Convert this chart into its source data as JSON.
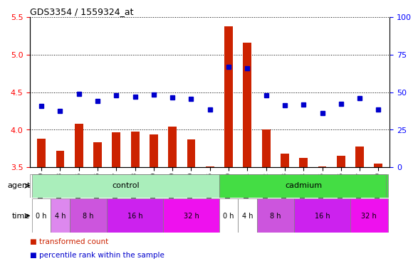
{
  "title": "GDS3354 / 1559324_at",
  "samples": [
    "GSM251630",
    "GSM251633",
    "GSM251635",
    "GSM251636",
    "GSM251637",
    "GSM251638",
    "GSM251639",
    "GSM251640",
    "GSM251649",
    "GSM251686",
    "GSM251620",
    "GSM251621",
    "GSM251622",
    "GSM251623",
    "GSM251624",
    "GSM251625",
    "GSM251626",
    "GSM251627",
    "GSM251629"
  ],
  "bar_values": [
    3.88,
    3.72,
    4.08,
    3.83,
    3.97,
    3.98,
    3.94,
    4.04,
    3.87,
    3.51,
    5.38,
    5.16,
    4.0,
    3.68,
    3.63,
    3.51,
    3.65,
    3.78,
    3.55
  ],
  "dot_values": [
    4.32,
    4.25,
    4.48,
    4.38,
    4.46,
    4.44,
    4.47,
    4.43,
    4.41,
    4.27,
    4.84,
    4.82,
    4.46,
    4.33,
    4.34,
    4.22,
    4.35,
    4.42,
    4.27
  ],
  "ylim_left": [
    3.5,
    5.5
  ],
  "ylim_right": [
    0,
    100
  ],
  "yticks_left": [
    3.5,
    4.0,
    4.5,
    5.0,
    5.5
  ],
  "yticks_right": [
    0,
    25,
    50,
    75,
    100
  ],
  "bar_color": "#cc2200",
  "dot_color": "#0000cc",
  "agent_control_color": "#aaeebb",
  "agent_cadmium_color": "#44dd44",
  "time_color_white": "#ffffff",
  "time_color_light": "#dd88ee",
  "time_color_med": "#cc55dd",
  "time_color_dark": "#cc22ee",
  "agent_label": "agent",
  "time_label": "time",
  "control_label": "control",
  "cadmium_label": "cadmium",
  "legend_bar_label": "transformed count",
  "legend_dot_label": "percentile rank within the sample",
  "time_groups": [
    {
      "start": 0,
      "end": 0,
      "label": "0 h",
      "color_idx": 0
    },
    {
      "start": 1,
      "end": 1,
      "label": "4 h",
      "color_idx": 1
    },
    {
      "start": 2,
      "end": 3,
      "label": "8 h",
      "color_idx": 2
    },
    {
      "start": 4,
      "end": 6,
      "label": "16 h",
      "color_idx": 3
    },
    {
      "start": 7,
      "end": 9,
      "label": "32 h",
      "color_idx": 4
    },
    {
      "start": 10,
      "end": 10,
      "label": "0 h",
      "color_idx": 0
    },
    {
      "start": 11,
      "end": 11,
      "label": "4 h",
      "color_idx": 0
    },
    {
      "start": 12,
      "end": 13,
      "label": "8 h",
      "color_idx": 2
    },
    {
      "start": 14,
      "end": 16,
      "label": "16 h",
      "color_idx": 3
    },
    {
      "start": 17,
      "end": 18,
      "label": "32 h",
      "color_idx": 4
    }
  ]
}
